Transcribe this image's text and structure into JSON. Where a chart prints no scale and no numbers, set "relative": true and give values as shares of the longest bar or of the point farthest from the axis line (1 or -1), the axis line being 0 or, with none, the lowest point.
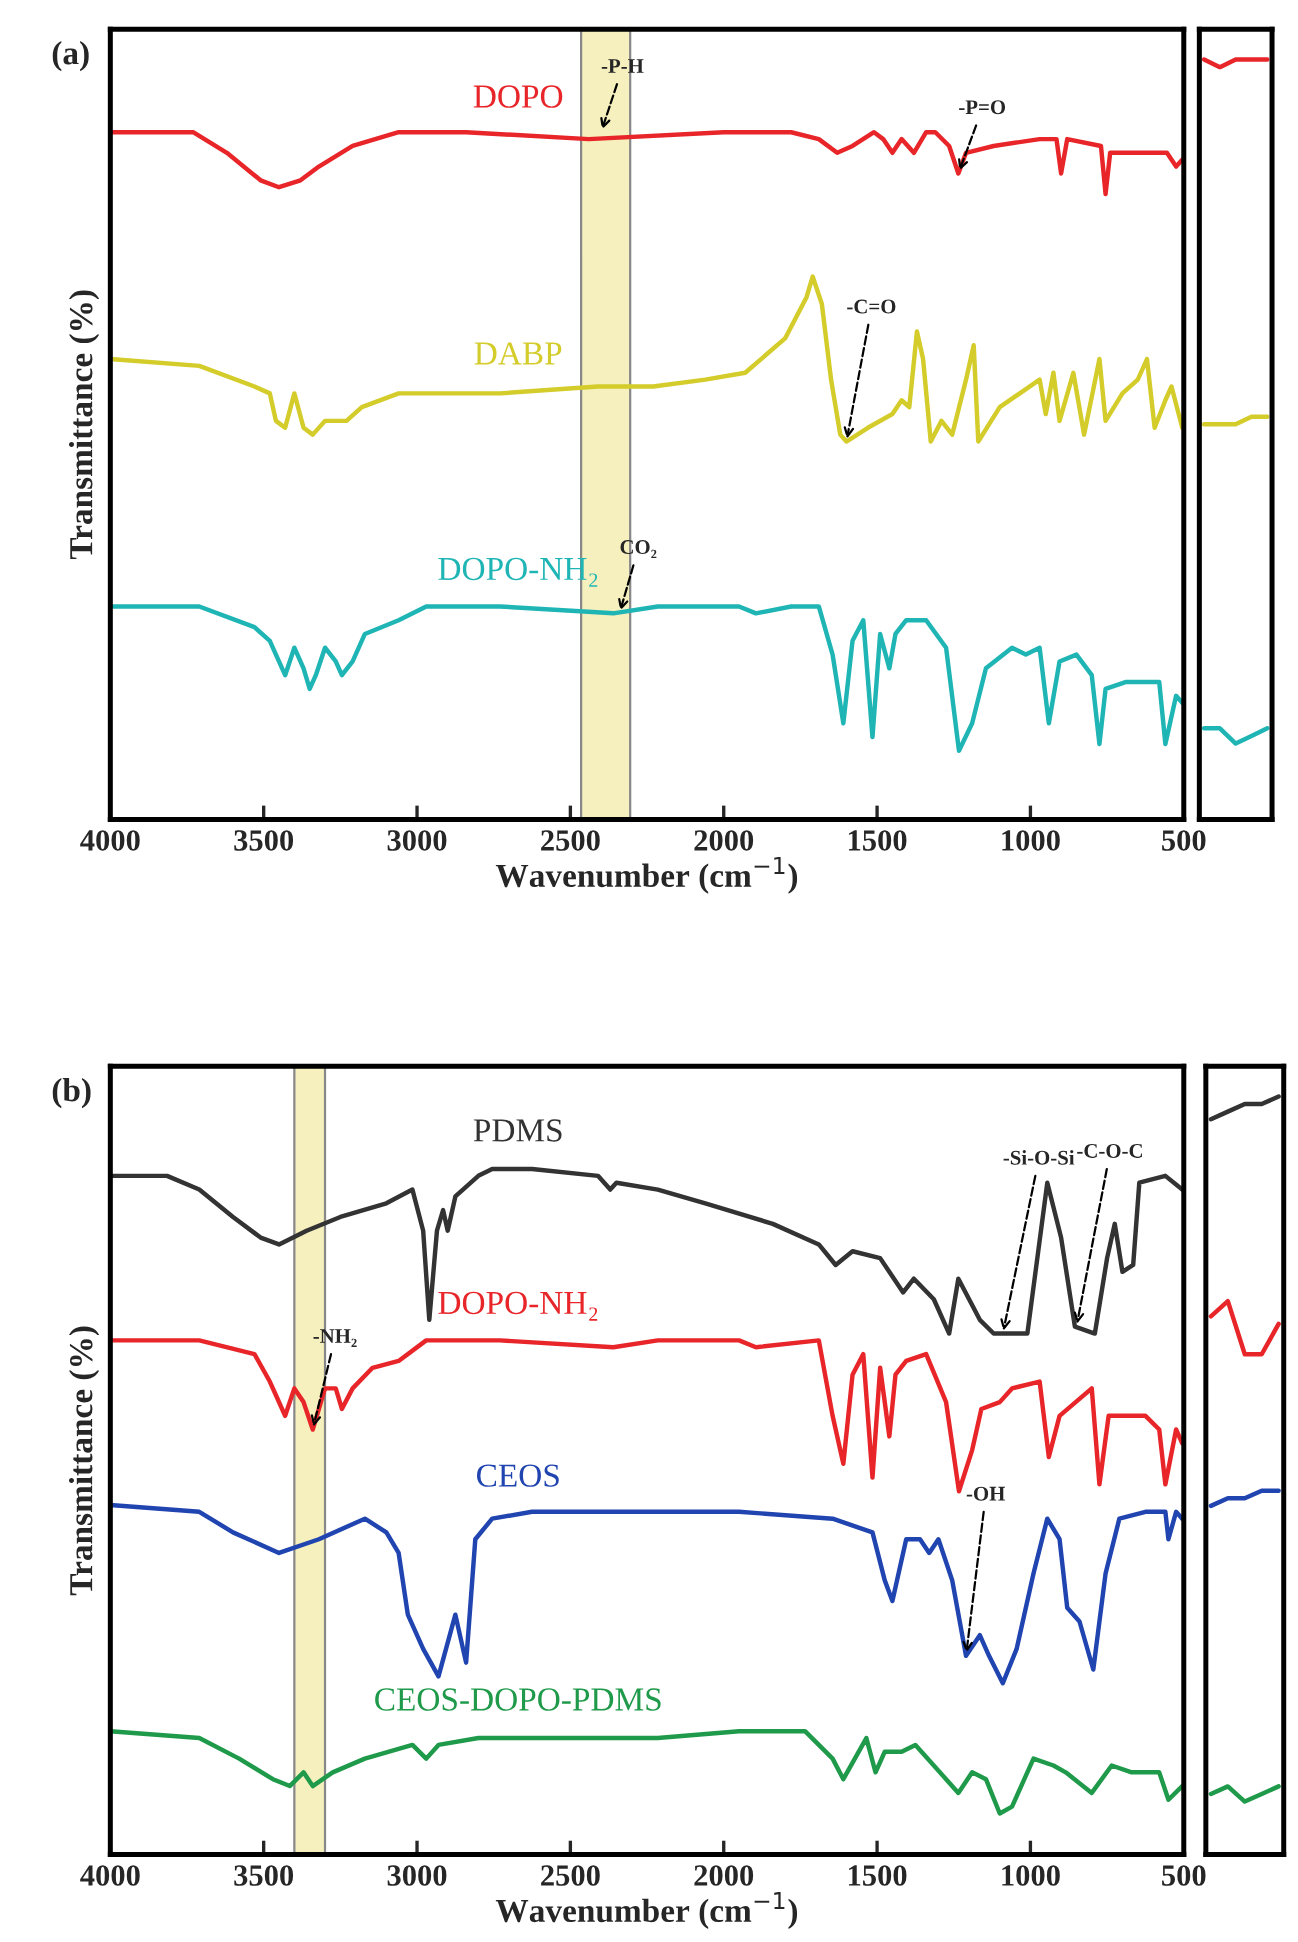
{
  "chart_data": [
    {
      "type": "line",
      "relative": true,
      "title": "(a)",
      "xlabel": "Wavenumber (cm$^{−1}$)",
      "ylabel": "Transmittance (%)",
      "xlim": [
        4000,
        500
      ],
      "xticks": [
        4000,
        3500,
        3000,
        2500,
        2000,
        1500,
        1000,
        500
      ],
      "tick_labels": "x",
      "bands": [
        {
          "axis": "x",
          "from": 2465,
          "to": 2305,
          "color": "#f5f0bd"
        }
      ],
      "annotations": [
        {
          "text": "-P-H",
          "x": 2400,
          "y": 1.0
        },
        {
          "text": "-P=O",
          "x": 1235,
          "y": 0.94
        },
        {
          "text": "-C=O",
          "x": 1600,
          "y": 0.55
        },
        {
          "text": "CO₂",
          "x": 2340,
          "y": 0.3
        }
      ],
      "series": [
        {
          "name": "DOPO",
          "color": "#e8262a",
          "x": [
            4000,
            3730,
            3620,
            3510,
            3450,
            3380,
            3320,
            3210,
            3060,
            2840,
            2440,
            2000,
            1780,
            1690,
            1630,
            1580,
            1510,
            1480,
            1450,
            1420,
            1380,
            1340,
            1310,
            1265,
            1235,
            1210,
            1120,
            970,
            915,
            900,
            880,
            770,
            755,
            740,
            620,
            555,
            525,
            505
          ],
          "values": [
            1.0,
            1.0,
            0.97,
            0.93,
            0.92,
            0.93,
            0.95,
            0.98,
            1.0,
            1.0,
            0.99,
            1.0,
            1.0,
            0.99,
            0.97,
            0.98,
            1.0,
            0.99,
            0.97,
            0.99,
            0.97,
            1.0,
            1.0,
            0.98,
            0.94,
            0.97,
            0.98,
            0.99,
            0.99,
            0.94,
            0.99,
            0.98,
            0.91,
            0.97,
            0.97,
            0.97,
            0.95,
            0.96
          ]
        },
        {
          "name": "DABP",
          "color": "#d4cc2a",
          "x": [
            4000,
            3710,
            3530,
            3480,
            3460,
            3430,
            3400,
            3370,
            3340,
            3300,
            3230,
            3180,
            3060,
            2730,
            2410,
            2230,
            2060,
            1930,
            1800,
            1730,
            1710,
            1680,
            1650,
            1620,
            1600,
            1530,
            1450,
            1420,
            1395,
            1370,
            1350,
            1325,
            1290,
            1255,
            1210,
            1185,
            1170,
            1100,
            970,
            950,
            925,
            905,
            860,
            825,
            775,
            755,
            700,
            650,
            620,
            595,
            560,
            540,
            505
          ],
          "values": [
            0.67,
            0.66,
            0.63,
            0.62,
            0.58,
            0.57,
            0.62,
            0.57,
            0.56,
            0.58,
            0.58,
            0.6,
            0.62,
            0.62,
            0.63,
            0.63,
            0.64,
            0.65,
            0.7,
            0.76,
            0.79,
            0.75,
            0.64,
            0.56,
            0.55,
            0.57,
            0.59,
            0.61,
            0.6,
            0.71,
            0.67,
            0.55,
            0.58,
            0.56,
            0.64,
            0.69,
            0.55,
            0.6,
            0.64,
            0.59,
            0.65,
            0.58,
            0.65,
            0.56,
            0.67,
            0.58,
            0.62,
            0.64,
            0.67,
            0.57,
            0.61,
            0.63,
            0.57
          ]
        },
        {
          "name": "DOPO-NH₂",
          "color": "#1fb5b5",
          "x": [
            4000,
            3710,
            3530,
            3480,
            3460,
            3430,
            3400,
            3370,
            3350,
            3330,
            3300,
            3265,
            3245,
            3210,
            3170,
            3060,
            2970,
            2730,
            2360,
            2215,
            1950,
            1895,
            1780,
            1690,
            1645,
            1610,
            1580,
            1545,
            1515,
            1490,
            1460,
            1440,
            1405,
            1340,
            1275,
            1233,
            1190,
            1145,
            1060,
            1015,
            970,
            940,
            905,
            850,
            800,
            775,
            755,
            690,
            580,
            560,
            525,
            505
          ],
          "values": [
            0.31,
            0.31,
            0.28,
            0.26,
            0.24,
            0.21,
            0.25,
            0.22,
            0.19,
            0.21,
            0.25,
            0.23,
            0.21,
            0.23,
            0.27,
            0.29,
            0.31,
            0.31,
            0.3,
            0.31,
            0.31,
            0.3,
            0.31,
            0.31,
            0.24,
            0.14,
            0.26,
            0.29,
            0.12,
            0.27,
            0.22,
            0.27,
            0.29,
            0.29,
            0.25,
            0.1,
            0.14,
            0.22,
            0.25,
            0.24,
            0.25,
            0.14,
            0.23,
            0.24,
            0.21,
            0.11,
            0.19,
            0.2,
            0.2,
            0.11,
            0.18,
            0.17
          ]
        }
      ]
    },
    {
      "type": "line",
      "relative": true,
      "categories": [
        null,
        null,
        null,
        null,
        null
      ],
      "tick_labels": false,
      "series": [
        {
          "color": "#e8262a",
          "values": [
            1.0,
            0.99,
            1.0,
            1.0,
            1.0
          ]
        },
        {
          "color": "#d4cc2a",
          "values": [
            0.52,
            0.52,
            0.52,
            0.53,
            0.53
          ]
        },
        {
          "color": "#1fb5b5",
          "values": [
            0.12,
            0.12,
            0.1,
            0.11,
            0.12
          ]
        }
      ]
    },
    {
      "type": "line",
      "relative": true,
      "title": "(b)",
      "xlabel": "Wavenumber (cm$^{−1}$)",
      "ylabel": "Transmittance (%)",
      "xlim": [
        4000,
        500
      ],
      "xticks": [
        4000,
        3500,
        3000,
        2500,
        2000,
        1500,
        1000,
        500
      ],
      "tick_labels": "x",
      "bands": [
        {
          "axis": "x",
          "from": 3400,
          "to": 3300,
          "color": "#f5f0bd"
        }
      ],
      "annotations": [
        {
          "text": "-NH₂",
          "x": 3340,
          "y": 0.62
        },
        {
          "text": "-Si-O-Si",
          "x": 1090,
          "y": 0.76
        },
        {
          "text": "-C-O-C",
          "x": 850,
          "y": 0.77
        },
        {
          "text": "-OH",
          "x": 1210,
          "y": 0.29
        }
      ],
      "series": [
        {
          "name": "PDMS",
          "color": "#333333",
          "x": [
            4000,
            3815,
            3710,
            3600,
            3510,
            3450,
            3360,
            3250,
            3100,
            3015,
            2980,
            2960,
            2935,
            2915,
            2900,
            2875,
            2800,
            2755,
            2625,
            2410,
            2370,
            2350,
            2215,
            2060,
            1840,
            1690,
            1635,
            1580,
            1490,
            1415,
            1380,
            1315,
            1265,
            1235,
            1165,
            1120,
            1010,
            945,
            900,
            855,
            790,
            750,
            725,
            700,
            665,
            645,
            560,
            505
          ],
          "values": [
            0.99,
            0.99,
            0.97,
            0.93,
            0.9,
            0.89,
            0.91,
            0.93,
            0.95,
            0.97,
            0.91,
            0.78,
            0.91,
            0.94,
            0.91,
            0.96,
            0.99,
            1.0,
            1.0,
            0.99,
            0.97,
            0.98,
            0.97,
            0.95,
            0.92,
            0.89,
            0.86,
            0.88,
            0.87,
            0.82,
            0.84,
            0.81,
            0.76,
            0.84,
            0.78,
            0.76,
            0.76,
            0.98,
            0.9,
            0.77,
            0.76,
            0.87,
            0.92,
            0.85,
            0.86,
            0.98,
            0.99,
            0.97
          ]
        },
        {
          "name": "DOPO-NH₂",
          "color": "#e8262a",
          "x": [
            4000,
            3710,
            3530,
            3480,
            3460,
            3430,
            3400,
            3370,
            3340,
            3300,
            3265,
            3245,
            3210,
            3145,
            3060,
            2970,
            2730,
            2360,
            2215,
            1950,
            1895,
            1690,
            1645,
            1610,
            1580,
            1545,
            1515,
            1490,
            1460,
            1440,
            1405,
            1340,
            1275,
            1233,
            1190,
            1160,
            1100,
            1060,
            970,
            940,
            905,
            800,
            775,
            745,
            625,
            580,
            560,
            525,
            505
          ],
          "values": [
            0.75,
            0.75,
            0.73,
            0.69,
            0.67,
            0.64,
            0.68,
            0.66,
            0.62,
            0.68,
            0.68,
            0.65,
            0.68,
            0.71,
            0.72,
            0.75,
            0.75,
            0.74,
            0.75,
            0.75,
            0.74,
            0.75,
            0.64,
            0.57,
            0.7,
            0.73,
            0.55,
            0.71,
            0.61,
            0.7,
            0.72,
            0.73,
            0.66,
            0.53,
            0.59,
            0.65,
            0.66,
            0.68,
            0.69,
            0.58,
            0.64,
            0.68,
            0.54,
            0.64,
            0.64,
            0.62,
            0.54,
            0.62,
            0.6
          ]
        },
        {
          "name": "CEOS",
          "color": "#2145b0",
          "x": [
            4000,
            3710,
            3600,
            3450,
            3320,
            3170,
            3100,
            3060,
            3030,
            2980,
            2930,
            2875,
            2840,
            2810,
            2755,
            2625,
            2215,
            1950,
            1645,
            1515,
            1475,
            1450,
            1405,
            1360,
            1330,
            1300,
            1255,
            1210,
            1165,
            1135,
            1090,
            1045,
            990,
            945,
            905,
            880,
            840,
            795,
            755,
            710,
            625,
            560,
            550,
            525,
            505
          ],
          "values": [
            0.51,
            0.5,
            0.47,
            0.44,
            0.46,
            0.49,
            0.47,
            0.44,
            0.35,
            0.3,
            0.26,
            0.35,
            0.28,
            0.46,
            0.49,
            0.5,
            0.5,
            0.5,
            0.49,
            0.47,
            0.4,
            0.37,
            0.46,
            0.46,
            0.44,
            0.46,
            0.4,
            0.29,
            0.32,
            0.29,
            0.25,
            0.3,
            0.41,
            0.49,
            0.46,
            0.36,
            0.34,
            0.27,
            0.41,
            0.49,
            0.5,
            0.5,
            0.46,
            0.5,
            0.49
          ]
        },
        {
          "name": "CEOS-DOPO-PDMS",
          "color": "#1f9a4a",
          "x": [
            4000,
            3710,
            3580,
            3470,
            3415,
            3370,
            3340,
            3275,
            3170,
            3015,
            2970,
            2930,
            2800,
            2410,
            2350,
            2215,
            1950,
            1735,
            1645,
            1610,
            1535,
            1505,
            1475,
            1420,
            1375,
            1275,
            1235,
            1190,
            1145,
            1100,
            1060,
            990,
            925,
            885,
            800,
            735,
            670,
            580,
            550,
            505
          ],
          "values": [
            0.18,
            0.17,
            0.14,
            0.11,
            0.1,
            0.12,
            0.1,
            0.12,
            0.14,
            0.16,
            0.14,
            0.16,
            0.17,
            0.17,
            0.17,
            0.17,
            0.18,
            0.18,
            0.14,
            0.11,
            0.17,
            0.12,
            0.15,
            0.15,
            0.16,
            0.11,
            0.09,
            0.12,
            0.11,
            0.06,
            0.07,
            0.14,
            0.13,
            0.12,
            0.09,
            0.13,
            0.12,
            0.12,
            0.08,
            0.1
          ]
        }
      ]
    },
    {
      "type": "line",
      "relative": true,
      "categories": [
        null,
        null,
        null,
        null,
        null
      ],
      "tick_labels": false,
      "series": [
        {
          "color": "#333333",
          "values": [
            0.97,
            0.98,
            0.99,
            0.99,
            1.0
          ]
        },
        {
          "color": "#e8262a",
          "values": [
            0.71,
            0.73,
            0.66,
            0.66,
            0.7
          ]
        },
        {
          "color": "#2145b0",
          "values": [
            0.46,
            0.47,
            0.47,
            0.48,
            0.48
          ]
        },
        {
          "color": "#1f9a4a",
          "values": [
            0.08,
            0.09,
            0.07,
            0.08,
            0.09
          ]
        }
      ]
    }
  ]
}
